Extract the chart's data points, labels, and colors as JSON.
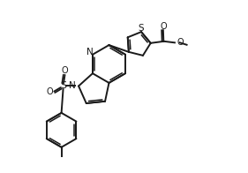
{
  "bg_color": "#ffffff",
  "line_color": "#1a1a1a",
  "lw": 1.4,
  "figsize": [
    2.81,
    1.96
  ],
  "dpi": 100,
  "xlim": [
    -1.0,
    10.5
  ],
  "ylim": [
    -0.5,
    7.5
  ]
}
